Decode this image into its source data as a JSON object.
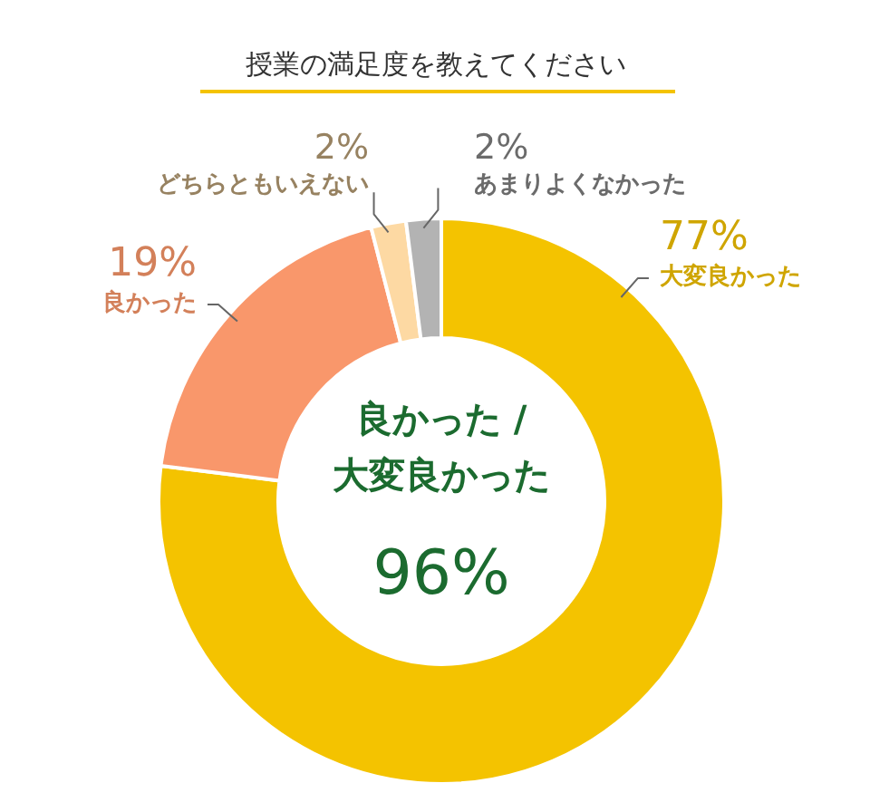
{
  "chart_data": {
    "type": "donut",
    "title": "授業の満足度を教えてください",
    "categories": [
      "大変良かった",
      "良かった",
      "どちらともいえない",
      "あまりよくなかった"
    ],
    "values": [
      77,
      19,
      2,
      2
    ],
    "colors": [
      "#f4c300",
      "#f9976b",
      "#fdd9a3",
      "#b3b3b3"
    ],
    "value_labels": [
      "77%",
      "19%",
      "2%",
      "2%"
    ],
    "annotations": [
      "良かった /\n大変良かった",
      "96%"
    ]
  }
}
